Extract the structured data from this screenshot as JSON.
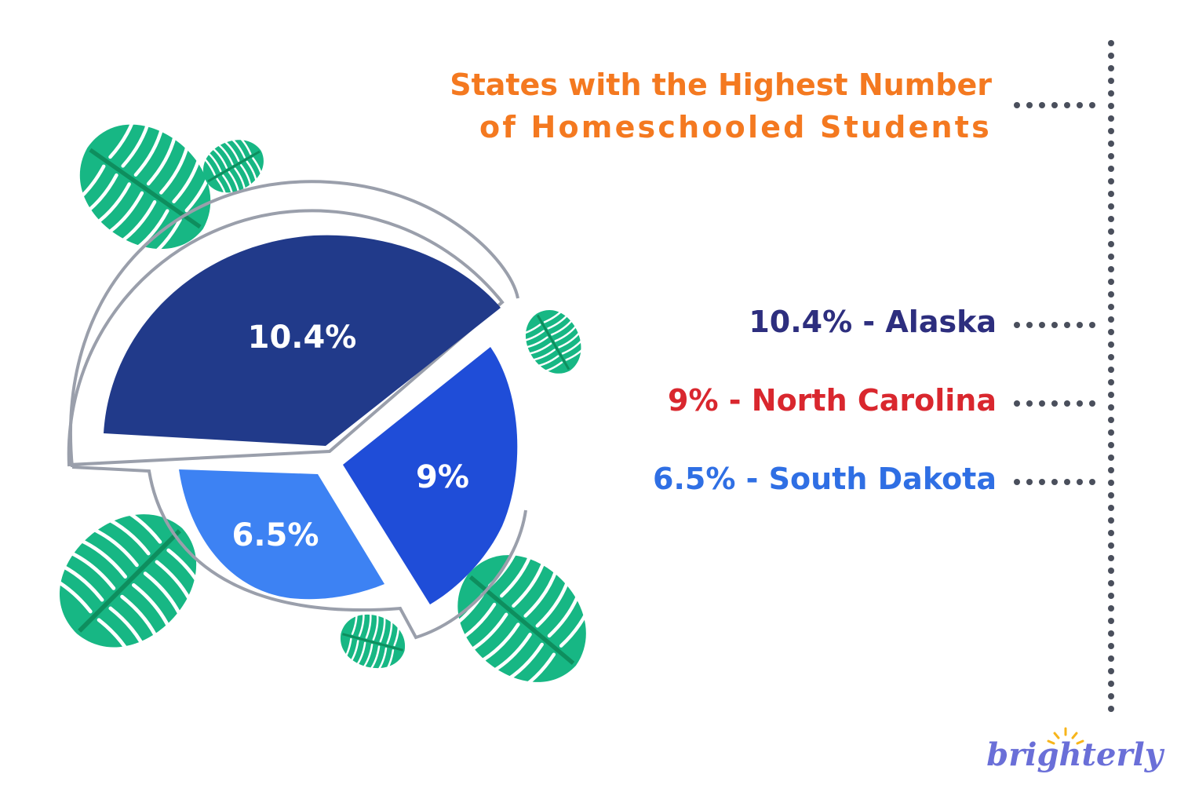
{
  "chart_data": {
    "type": "pie",
    "title_lines": [
      "States with the Highest Number",
      "of Homeschooled Students"
    ],
    "slices": [
      {
        "label": "10.4%",
        "value": 10.4,
        "legend": "10.4% - Alaska",
        "color": "#213a8a",
        "legend_color": "#2d2e7e"
      },
      {
        "label": "9%",
        "value": 9,
        "legend": "9% - North Carolina",
        "color": "#1f4dd8",
        "legend_color": "#d9272e"
      },
      {
        "label": "6.5%",
        "value": 6.5,
        "legend": "6.5% - South Dakota",
        "color": "#3d82f3",
        "legend_color": "#2f6fe4"
      }
    ],
    "legend_placement": "right"
  },
  "colors": {
    "title": "#f47920",
    "dotted_line": "#4a4f5c",
    "leaf_light": "#17b784",
    "leaf_dark": "#0e8e5e",
    "ring": "#9a9fab"
  },
  "logo": {
    "text": "brighterly",
    "color": "#6a6fd8",
    "rays_color": "#f7b51b"
  }
}
